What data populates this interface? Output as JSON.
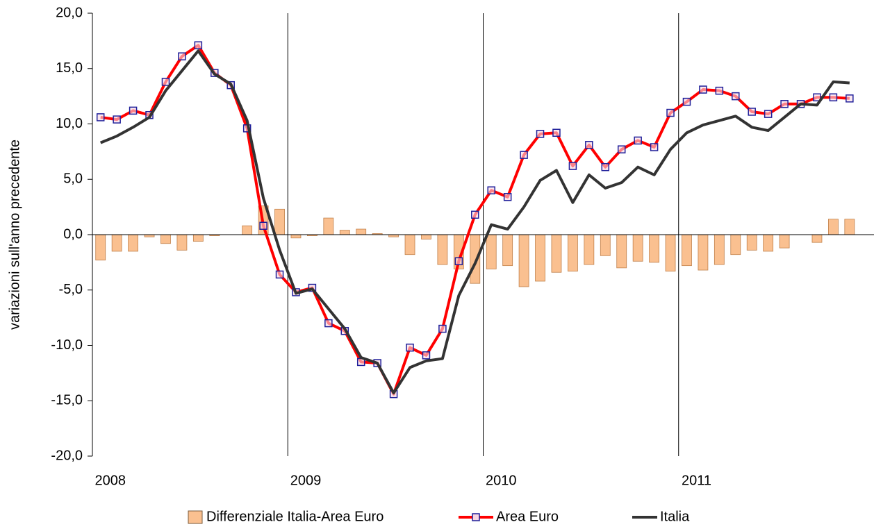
{
  "chart_data": {
    "type": "combo",
    "y_label": "variazioni sull'anno precedente",
    "categories": [
      "2008",
      null,
      null,
      null,
      null,
      null,
      null,
      null,
      null,
      null,
      null,
      null,
      "2009",
      null,
      null,
      null,
      null,
      null,
      null,
      null,
      null,
      null,
      null,
      null,
      "2010",
      null,
      null,
      null,
      null,
      null,
      null,
      null,
      null,
      null,
      null,
      null,
      "2011",
      null,
      null,
      null,
      null,
      null,
      null,
      null,
      null,
      null,
      null
    ],
    "series": [
      {
        "name": "Differenziale Italia-Area Euro",
        "type": "bar",
        "color": "#fac090",
        "edge": "#c0804a",
        "values": [
          -2.3,
          -1.5,
          -1.5,
          -0.2,
          -0.8,
          -1.4,
          -0.6,
          -0.1,
          0.0,
          0.8,
          2.6,
          2.3,
          -0.3,
          -0.1,
          1.5,
          0.4,
          0.5,
          0.1,
          -0.2,
          -1.8,
          -0.4,
          -2.7,
          -3.1,
          -4.4,
          -3.1,
          -2.8,
          -4.7,
          -4.2,
          -3.4,
          -3.3,
          -2.7,
          -1.9,
          -3.0,
          -2.4,
          -2.5,
          -3.3,
          -2.8,
          -3.2,
          -2.7,
          -1.8,
          -1.4,
          -1.5,
          -1.2,
          0.0,
          -0.7,
          1.4,
          1.4
        ]
      },
      {
        "name": "Area Euro",
        "type": "line",
        "color": "#ff0000",
        "marker": "square",
        "marker_color": "#1f1f9a",
        "values": [
          10.6,
          10.4,
          11.2,
          10.8,
          13.8,
          16.1,
          17.1,
          14.6,
          13.5,
          9.6,
          0.8,
          -3.6,
          -5.2,
          -4.8,
          -8.0,
          -8.7,
          -11.5,
          -11.6,
          -14.4,
          -10.2,
          -10.9,
          -8.5,
          -2.4,
          1.8,
          4.0,
          3.4,
          7.2,
          9.1,
          9.2,
          6.2,
          8.1,
          6.1,
          7.7,
          8.5,
          7.9,
          11.0,
          12.0,
          13.1,
          13.0,
          12.5,
          11.1,
          10.9,
          11.8,
          11.8,
          12.4,
          12.4,
          12.3
        ]
      },
      {
        "name": "Italia",
        "type": "line",
        "color": "#333333",
        "values": [
          8.3,
          8.9,
          9.7,
          10.6,
          13.0,
          14.8,
          16.6,
          14.5,
          13.6,
          10.3,
          3.3,
          -1.4,
          -5.3,
          -4.9,
          -6.7,
          -8.5,
          -11.1,
          -11.6,
          -14.3,
          -12.0,
          -11.4,
          -11.2,
          -5.5,
          -2.6,
          0.9,
          0.5,
          2.5,
          4.9,
          5.8,
          2.9,
          5.4,
          4.2,
          4.7,
          6.1,
          5.4,
          7.7,
          9.2,
          9.9,
          10.3,
          10.7,
          9.7,
          9.4,
          10.6,
          11.8,
          11.7,
          13.8,
          13.7
        ]
      }
    ],
    "ylim": [
      -20,
      20
    ],
    "yticks": [
      {
        "value": -20,
        "label": "-20,0"
      },
      {
        "value": -15,
        "label": "-15,0"
      },
      {
        "value": -10,
        "label": "-10,0"
      },
      {
        "value": -5,
        "label": "-5,0"
      },
      {
        "value": 0,
        "label": "0,0"
      },
      {
        "value": 5,
        "label": "5,0"
      },
      {
        "value": 10,
        "label": "10,0"
      },
      {
        "value": 15,
        "label": "15,0"
      },
      {
        "value": 20,
        "label": "20,0"
      }
    ],
    "legend": "bottom"
  }
}
